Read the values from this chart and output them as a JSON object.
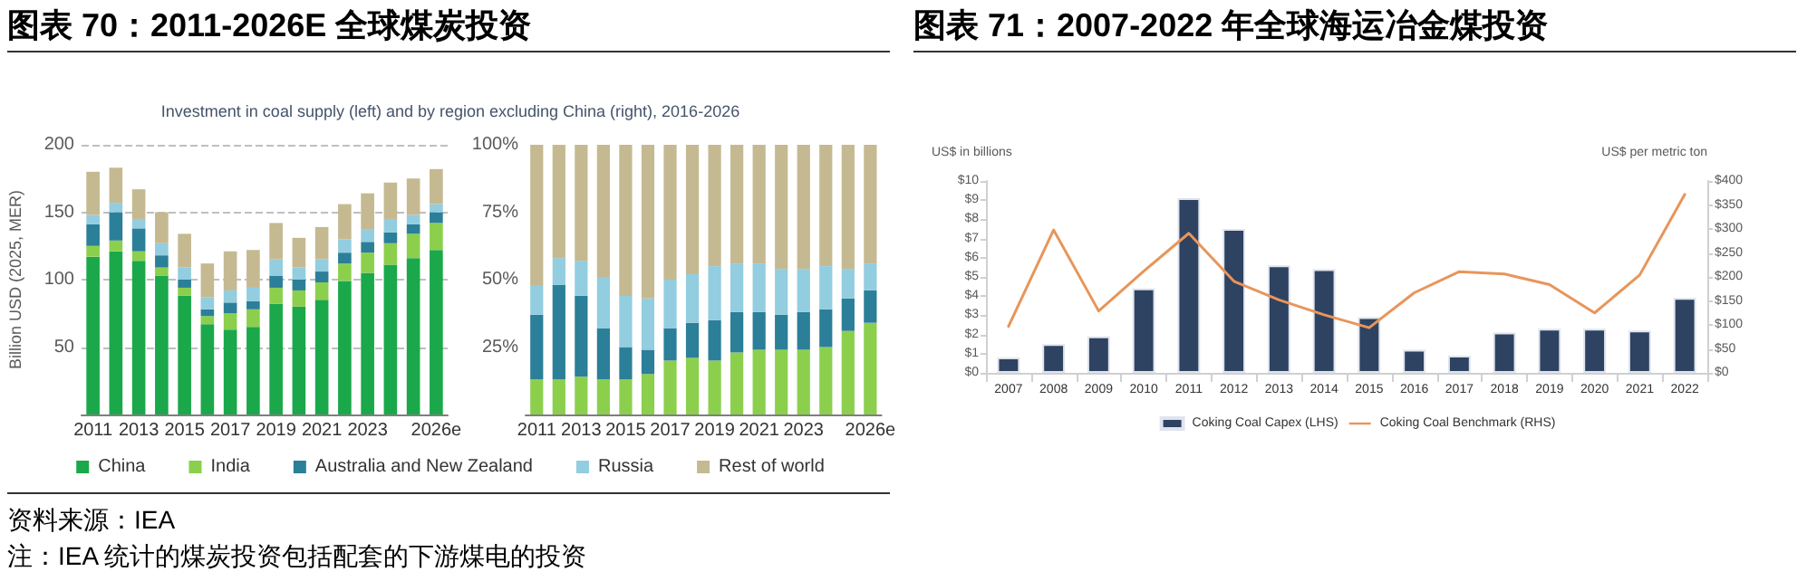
{
  "chart_data": [
    {
      "type": "bar",
      "title": "图表 70：2011-2026E 全球煤炭投资",
      "subtitle": "Investment in coal supply (left) and by region excluding China (right), 2016-2026",
      "ylabel": "Billion USD (2025, MER)",
      "categories": [
        "2011",
        null,
        "2013",
        null,
        "2015",
        null,
        "2017",
        null,
        "2019",
        null,
        "2021",
        null,
        "2023",
        null,
        null,
        "2026e"
      ],
      "stacked": true,
      "series": [
        {
          "name": "China",
          "color": "#1aa84b",
          "values": [
            117,
            121,
            114,
            103,
            88,
            67,
            63,
            65,
            82,
            80,
            85,
            99,
            105,
            111,
            116,
            122
          ]
        },
        {
          "name": "India",
          "color": "#8ccf4d",
          "values": [
            8,
            8,
            7,
            6,
            6,
            6,
            12,
            13,
            12,
            12,
            13,
            13,
            15,
            16,
            18,
            20
          ]
        },
        {
          "name": "Australia and New Zealand",
          "color": "#2b7f98",
          "values": [
            16,
            21,
            17,
            9,
            6,
            5,
            8,
            6,
            9,
            8,
            8,
            8,
            8,
            8,
            7,
            8
          ]
        },
        {
          "name": "Russia",
          "color": "#92cde0",
          "values": [
            7,
            7,
            7,
            9,
            9,
            9,
            9,
            10,
            12,
            9,
            9,
            10,
            9,
            10,
            7,
            6
          ]
        },
        {
          "name": "Rest of world",
          "color": "#c5b991",
          "values": [
            32,
            26,
            22,
            23,
            25,
            25,
            29,
            28,
            27,
            22,
            24,
            26,
            27,
            27,
            27,
            26
          ]
        }
      ],
      "ylim": [
        0,
        200
      ],
      "yticks": [
        {
          "value": 0,
          "label": null
        },
        50,
        100,
        150,
        200
      ],
      "grid": "y",
      "legend": "bottom",
      "annotations": [
        "资料来源：IEA",
        "注：IEA 统计的煤炭投资包括配套的下游煤电的投资"
      ]
    },
    {
      "type": "bar",
      "categories": [
        "2011",
        null,
        "2013",
        null,
        "2015",
        null,
        "2017",
        null,
        "2019",
        null,
        "2021",
        null,
        "2023",
        null,
        null,
        "2026e"
      ],
      "stacked": true,
      "series": [
        {
          "color": "#8ccf4d",
          "values": [
            13,
            13,
            14,
            13,
            13,
            15,
            20,
            21,
            20,
            23,
            24,
            24,
            24,
            25,
            31,
            34
          ]
        },
        {
          "color": "#2b7f98",
          "values": [
            24,
            35,
            30,
            19,
            12,
            9,
            12,
            13,
            15,
            15,
            14,
            13,
            14,
            14,
            12,
            12
          ]
        },
        {
          "color": "#92cde0",
          "values": [
            11,
            10,
            13,
            19,
            19,
            19,
            18,
            18,
            20,
            18,
            18,
            17,
            16,
            16,
            11,
            10
          ]
        },
        {
          "color": "#c5b991",
          "values": [
            52,
            42,
            43,
            49,
            56,
            57,
            50,
            48,
            45,
            44,
            44,
            46,
            46,
            45,
            46,
            44
          ]
        }
      ],
      "ylim": [
        0,
        100
      ],
      "yticks": [
        {
          "value": 0,
          "label": null
        },
        {
          "value": 25,
          "label": "25%"
        },
        {
          "value": 50,
          "label": "50%"
        },
        {
          "value": 75,
          "label": "75%"
        },
        {
          "value": 100,
          "label": "100%"
        }
      ]
    },
    {
      "type": "bar",
      "title": "图表 71：2007-2022 年全球海运冶金煤投资",
      "ylabel": "US$ in billions",
      "y2label": "US$ per metric ton",
      "categories": [
        "2007",
        "2008",
        "2009",
        "2010",
        "2011",
        "2012",
        "2013",
        "2014",
        "2015",
        "2016",
        "2017",
        "2018",
        "2019",
        "2020",
        "2021",
        "2022"
      ],
      "series": [
        {
          "name": "Coking Coal Capex (LHS)",
          "type": "bar",
          "color": "#2e4262",
          "values": [
            0.8,
            1.5,
            1.9,
            4.4,
            9.1,
            7.5,
            5.6,
            5.4,
            2.9,
            1.2,
            0.9,
            2.1,
            2.3,
            2.3,
            2.2,
            3.9
          ]
        },
        {
          "name": "Coking Coal Benchmark (RHS)",
          "type": "line",
          "axis": "y2",
          "color": "#e8955a",
          "values": [
            97,
            298,
            129,
            212,
            291,
            191,
            152,
            121,
            94,
            167,
            211,
            206,
            184,
            125,
            204,
            372
          ]
        }
      ],
      "ylim": [
        0,
        10
      ],
      "yticks": [
        {
          "value": 0,
          "label": "$0"
        },
        {
          "value": 1,
          "label": "$1"
        },
        {
          "value": 2,
          "label": "$2"
        },
        {
          "value": 3,
          "label": "$3"
        },
        {
          "value": 4,
          "label": "$4"
        },
        {
          "value": 5,
          "label": "$5"
        },
        {
          "value": 6,
          "label": "$6"
        },
        {
          "value": 7,
          "label": "$7"
        },
        {
          "value": 8,
          "label": "$8"
        },
        {
          "value": 9,
          "label": "$9"
        },
        {
          "value": 10,
          "label": "$10"
        }
      ],
      "y2lim": [
        0,
        400
      ],
      "y2ticks": [
        {
          "value": 0,
          "label": "$0"
        },
        {
          "value": 50,
          "label": "$50"
        },
        {
          "value": 100,
          "label": "$100"
        },
        {
          "value": 150,
          "label": "$150"
        },
        {
          "value": 200,
          "label": "$200"
        },
        {
          "value": 250,
          "label": "$250"
        },
        {
          "value": 300,
          "label": "$300"
        },
        {
          "value": 350,
          "label": "$350"
        },
        {
          "value": 400,
          "label": "$400"
        }
      ],
      "legend": "bottom",
      "marker": "none",
      "line_style": "solid"
    }
  ]
}
